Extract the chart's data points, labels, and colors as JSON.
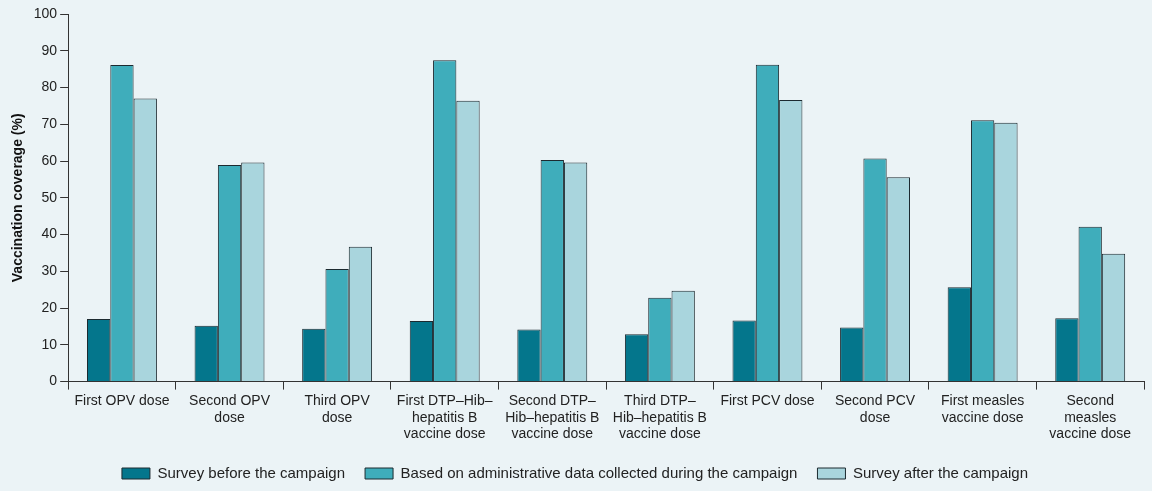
{
  "chart_data": {
    "type": "bar",
    "ylabel": "Vaccination coverage (%)",
    "categories": [
      "First OPV dose",
      "Second OPV dose",
      "Third OPV dose",
      "First DTP–Hib–hepatitis B vaccine dose",
      "Second DTP–Hib–hepatitis B vaccine dose",
      "Third DTP–Hib–hepatitis B vaccine dose",
      "First PCV dose",
      "Second PCV dose",
      "First measles vaccine dose",
      "Second measles vaccine dose"
    ],
    "series": [
      {
        "name": "Survey before the campaign",
        "color": "#04768c",
        "values": [
          17.0,
          15.2,
          14.4,
          16.5,
          14.2,
          12.9,
          16.6,
          14.7,
          25.7,
          17.2
        ]
      },
      {
        "name": "Based on administrative data collected during the campaign",
        "color": "#3fadbb",
        "values": [
          86.1,
          58.9,
          30.6,
          87.4,
          60.3,
          22.8,
          86.2,
          60.7,
          71.1,
          42.1
        ]
      },
      {
        "name": "Survey after the campaign",
        "color": "#a9d5dd",
        "values": [
          77.0,
          59.6,
          36.7,
          76.4,
          59.6,
          24.7,
          76.6,
          55.6,
          70.4,
          34.8
        ]
      }
    ],
    "ylim": [
      0,
      100
    ],
    "yticks": [
      0,
      10,
      20,
      30,
      40,
      50,
      60,
      70,
      80,
      90,
      100
    ],
    "grid": false,
    "legend": "bottom"
  }
}
